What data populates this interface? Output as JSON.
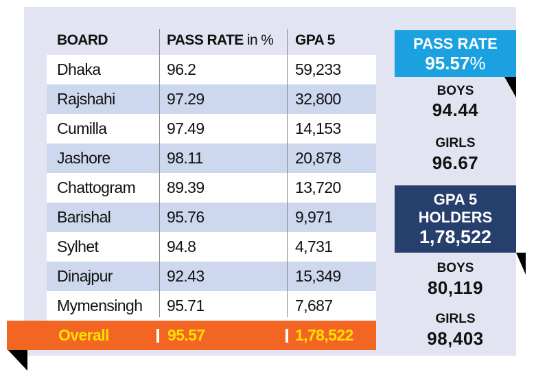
{
  "table": {
    "header": {
      "board": "BOARD",
      "pass_rate": "PASS RATE",
      "pass_rate_unit": "in %",
      "gpa5": "GPA 5"
    },
    "rows": [
      [
        "Dhaka",
        "96.2",
        "59,233"
      ],
      [
        "Rajshahi",
        "97.29",
        "32,800"
      ],
      [
        "Cumilla",
        "97.49",
        "14,153"
      ],
      [
        "Jashore",
        "98.11",
        "20,878"
      ],
      [
        "Chattogram",
        "89.39",
        "13,720"
      ],
      [
        "Barishal",
        "95.76",
        "9,971"
      ],
      [
        "Sylhet",
        "94.8",
        "4,731"
      ],
      [
        "Dinajpur",
        "92.43",
        "15,349"
      ],
      [
        "Mymensingh",
        "95.71",
        "7,687"
      ]
    ],
    "overall": [
      "Overall",
      "95.57",
      "1,78,522"
    ]
  },
  "summary": {
    "pass_rate": {
      "title": "PASS RATE",
      "value": "95.57",
      "unit": "%"
    },
    "pass_boys": {
      "label": "BOYS",
      "value": "94.44"
    },
    "pass_girls": {
      "label": "GIRLS",
      "value": "96.67"
    },
    "gpa5": {
      "title_1": "GPA 5",
      "title_2": "HOLDERS",
      "value": "1,78,522"
    },
    "gpa5_boys": {
      "label": "BOYS",
      "value": "80,119"
    },
    "gpa5_girls": {
      "label": "GIRLS",
      "value": "98,403"
    }
  }
}
